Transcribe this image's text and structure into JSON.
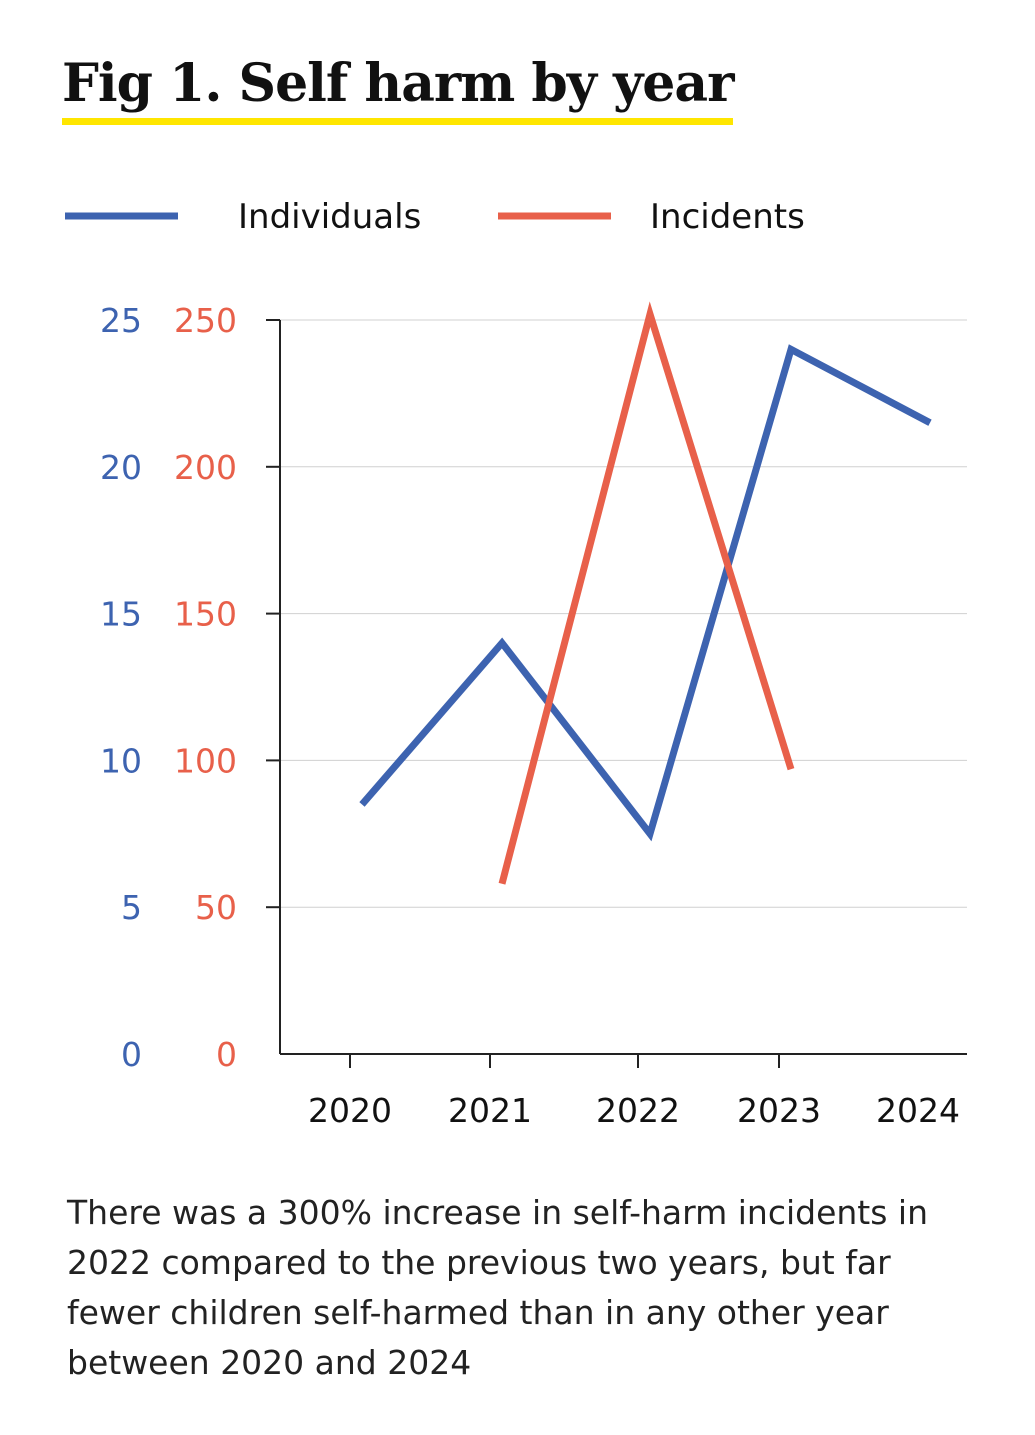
{
  "title": "Fig 1. Self harm by year",
  "caption": "There was a 300% increase in self-harm incidents in 2022 compared to the previous two years, but far fewer children self-harmed than in any other year between 2020 and 2024",
  "chart_data": {
    "type": "line",
    "title": "Fig 1. Self harm by year",
    "categories": [
      "2020",
      "2021",
      "2022",
      "2023",
      "2024"
    ],
    "series": [
      {
        "name": "Individuals",
        "axis": "left",
        "color": "#3d63b0",
        "values": [
          8.5,
          14,
          7.5,
          24,
          21.5
        ]
      },
      {
        "name": "Incidents",
        "axis": "right",
        "color": "#e8604a",
        "values": [
          null,
          58,
          252,
          97,
          null
        ]
      }
    ],
    "left_axis": {
      "ylim": [
        0,
        25
      ],
      "ticks": [
        "0",
        "5",
        "10",
        "15",
        "20",
        "25"
      ],
      "color": "#3d63b0"
    },
    "right_axis": {
      "ylim": [
        0,
        250
      ],
      "ticks": [
        "0",
        "50",
        "100",
        "150",
        "200",
        "250"
      ],
      "color": "#e8604a"
    },
    "grid": true,
    "legend_position": "top"
  }
}
